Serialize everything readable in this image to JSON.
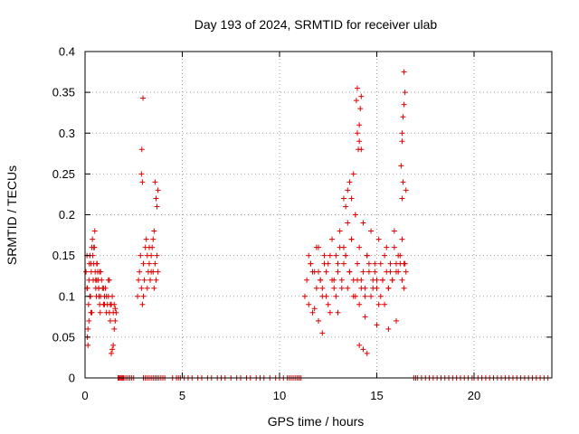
{
  "chart_data": {
    "type": "scatter",
    "title": "Day 193 of 2024, SRMTID for receiver ulab",
    "xlabel": "GPS time / hours",
    "ylabel": "SRMTID / TECUs",
    "xlim": [
      0,
      24
    ],
    "ylim": [
      0,
      0.4
    ],
    "xticks": [
      0,
      5,
      10,
      15,
      20
    ],
    "xtick_labels": [
      "0",
      "5",
      "10",
      "15",
      "20"
    ],
    "yticks": [
      0,
      0.05,
      0.1,
      0.15,
      0.2,
      0.25,
      0.3,
      0.35,
      0.4
    ],
    "ytick_labels": [
      "0",
      "0.05",
      "0.1",
      "0.15",
      "0.2",
      "0.25",
      "0.3",
      "0.35",
      "0.4"
    ],
    "grid": true,
    "marker": "+",
    "color": "#e00000",
    "series": [
      {
        "name": "SRMTID",
        "x": [
          0.05,
          0.1,
          0.12,
          0.15,
          0.18,
          0.2,
          0.22,
          0.25,
          0.28,
          0.3,
          0.32,
          0.35,
          0.38,
          0.4,
          0.42,
          0.45,
          0.48,
          0.5,
          0.52,
          0.55,
          0.58,
          0.6,
          0.62,
          0.65,
          0.68,
          0.7,
          0.72,
          0.75,
          0.78,
          0.8,
          0.85,
          0.9,
          0.95,
          1.0,
          1.05,
          1.1,
          1.15,
          1.2,
          1.25,
          1.3,
          1.35,
          1.4,
          1.45,
          1.5,
          1.55,
          1.6,
          0.15,
          0.2,
          0.25,
          0.3,
          0.45,
          0.55,
          0.7,
          0.8,
          1.0,
          1.2,
          1.35,
          1.4,
          1.45,
          1.5,
          0.1,
          0.12,
          0.35,
          0.6,
          0.75,
          0.95,
          1.1,
          1.25,
          1.3,
          1.55,
          2.7,
          2.75,
          2.8,
          2.85,
          2.9,
          2.95,
          3.0,
          3.05,
          3.1,
          3.15,
          3.2,
          3.25,
          3.3,
          3.35,
          3.4,
          3.45,
          3.5,
          3.55,
          3.6,
          3.65,
          3.7,
          3.75,
          2.9,
          2.92,
          2.95,
          2.98,
          3.6,
          3.65,
          3.7,
          3.75,
          3.5,
          3.55,
          3.0,
          3.2,
          3.4,
          3.3,
          11.3,
          11.4,
          11.5,
          11.6,
          11.7,
          11.8,
          11.9,
          12.0,
          12.1,
          12.2,
          12.3,
          12.4,
          12.5,
          12.6,
          12.7,
          12.8,
          12.9,
          13.0,
          13.1,
          13.2,
          13.3,
          13.4,
          13.5,
          13.6,
          13.7,
          13.8,
          13.9,
          14.0,
          14.1,
          14.2,
          14.3,
          14.4,
          14.5,
          14.6,
          14.7,
          14.8,
          14.9,
          15.0,
          15.1,
          15.2,
          15.3,
          15.4,
          15.5,
          15.6,
          15.7,
          15.8,
          15.9,
          16.0,
          16.1,
          16.2,
          16.3,
          16.4,
          16.5,
          11.5,
          11.8,
          12.0,
          12.2,
          12.4,
          12.6,
          12.8,
          13.0,
          13.2,
          13.4,
          13.6,
          13.8,
          14.0,
          14.2,
          14.4,
          14.6,
          14.8,
          15.0,
          15.2,
          15.4,
          15.6,
          15.8,
          16.0,
          16.2,
          16.4,
          11.6,
          11.9,
          12.3,
          12.7,
          13.1,
          13.5,
          13.9,
          14.3,
          14.7,
          15.1,
          15.5,
          15.9,
          16.3,
          11.7,
          12.1,
          12.5,
          12.9,
          13.3,
          13.7,
          14.1,
          14.5,
          14.9,
          15.3,
          15.7,
          16.1,
          16.45,
          13.3,
          13.4,
          13.5,
          13.6,
          13.7,
          13.8,
          13.9,
          14.0,
          14.05,
          14.1,
          14.15,
          14.2,
          13.95,
          14.0,
          14.1,
          14.2,
          16.25,
          16.3,
          16.35,
          16.4,
          16.45,
          16.3,
          16.35,
          16.4,
          16.5,
          16.3,
          12.2,
          14.1,
          14.3,
          14.5,
          15.0,
          12.0,
          13.0,
          14.4,
          15.6,
          16.0,
          1.7,
          1.75,
          1.8,
          1.85,
          1.9,
          1.95,
          2.0,
          2.1,
          2.2,
          2.3,
          2.4,
          2.5,
          3.0,
          3.1,
          3.2,
          3.3,
          3.4,
          3.5,
          3.6,
          3.7,
          3.8,
          3.9,
          4.0,
          4.1,
          4.5,
          4.7,
          4.8,
          4.9,
          5.1,
          5.3,
          5.5,
          5.8,
          6.0,
          6.3,
          6.5,
          6.8,
          7.0,
          7.2,
          7.5,
          7.8,
          8.0,
          8.3,
          8.5,
          8.8,
          9.0,
          9.2,
          9.5,
          9.8,
          10.0,
          10.2,
          10.4,
          10.5,
          10.6,
          10.7,
          10.8,
          10.9,
          11.0,
          11.1,
          16.9,
          17.0,
          17.1,
          17.3,
          17.5,
          17.7,
          17.9,
          18.1,
          18.3,
          18.5,
          18.7,
          18.9,
          19.1,
          19.3,
          19.5,
          19.7,
          19.9,
          20.0,
          20.2,
          20.4,
          20.6,
          20.8,
          21.0,
          21.2,
          21.4,
          21.6,
          21.8,
          22.0,
          22.2,
          22.4,
          22.6,
          22.8,
          23.0,
          23.2,
          23.4,
          23.6,
          23.8
        ],
        "y": [
          0.13,
          0.11,
          0.05,
          0.04,
          0.09,
          0.12,
          0.14,
          0.15,
          0.1,
          0.08,
          0.13,
          0.16,
          0.17,
          0.15,
          0.12,
          0.14,
          0.16,
          0.18,
          0.13,
          0.11,
          0.1,
          0.12,
          0.14,
          0.13,
          0.12,
          0.11,
          0.1,
          0.09,
          0.08,
          0.1,
          0.12,
          0.11,
          0.09,
          0.1,
          0.11,
          0.08,
          0.09,
          0.1,
          0.08,
          0.07,
          0.09,
          0.1,
          0.08,
          0.09,
          0.07,
          0.08,
          0.06,
          0.07,
          0.1,
          0.14,
          0.16,
          0.12,
          0.11,
          0.13,
          0.09,
          0.12,
          0.03,
          0.035,
          0.04,
          0.06,
          0.15,
          0.11,
          0.08,
          0.14,
          0.13,
          0.11,
          0.1,
          0.12,
          0.09,
          0.085,
          0.1,
          0.12,
          0.13,
          0.15,
          0.11,
          0.09,
          0.14,
          0.12,
          0.16,
          0.17,
          0.15,
          0.13,
          0.14,
          0.12,
          0.15,
          0.16,
          0.13,
          0.11,
          0.14,
          0.12,
          0.15,
          0.13,
          0.25,
          0.28,
          0.24,
          0.343,
          0.24,
          0.22,
          0.21,
          0.23,
          0.17,
          0.18,
          0.1,
          0.11,
          0.13,
          0.16,
          0.1,
          0.12,
          0.15,
          0.14,
          0.08,
          0.13,
          0.11,
          0.16,
          0.12,
          0.1,
          0.14,
          0.13,
          0.09,
          0.15,
          0.12,
          0.11,
          0.1,
          0.13,
          0.16,
          0.12,
          0.14,
          0.15,
          0.11,
          0.13,
          0.17,
          0.12,
          0.1,
          0.14,
          0.09,
          0.12,
          0.13,
          0.11,
          0.15,
          0.14,
          0.1,
          0.12,
          0.13,
          0.11,
          0.09,
          0.14,
          0.12,
          0.15,
          0.13,
          0.11,
          0.14,
          0.12,
          0.16,
          0.14,
          0.13,
          0.15,
          0.12,
          0.14,
          0.13,
          0.09,
          0.085,
          0.13,
          0.11,
          0.1,
          0.08,
          0.12,
          0.14,
          0.11,
          0.15,
          0.13,
          0.1,
          0.12,
          0.11,
          0.1,
          0.13,
          0.11,
          0.12,
          0.1,
          0.09,
          0.11,
          0.12,
          0.13,
          0.14,
          0.11,
          0.14,
          0.16,
          0.15,
          0.17,
          0.18,
          0.19,
          0.2,
          0.19,
          0.18,
          0.17,
          0.16,
          0.18,
          0.17,
          0.13,
          0.12,
          0.14,
          0.15,
          0.16,
          0.17,
          0.16,
          0.15,
          0.14,
          0.12,
          0.13,
          0.15,
          0.14,
          0.22,
          0.21,
          0.23,
          0.24,
          0.22,
          0.25,
          0.2,
          0.3,
          0.28,
          0.31,
          0.33,
          0.345,
          0.34,
          0.355,
          0.29,
          0.28,
          0.26,
          0.3,
          0.32,
          0.335,
          0.35,
          0.29,
          0.24,
          0.375,
          0.23,
          0.22,
          0.055,
          0.04,
          0.035,
          0.03,
          0.065,
          0.07,
          0.08,
          0.075,
          0.06,
          0.07,
          0,
          0,
          0,
          0,
          0,
          0,
          0,
          0,
          0,
          0,
          0,
          0,
          0,
          0,
          0,
          0,
          0,
          0,
          0,
          0,
          0,
          0,
          0,
          0,
          0,
          0,
          0,
          0,
          0,
          0,
          0,
          0,
          0,
          0,
          0,
          0,
          0,
          0,
          0,
          0,
          0,
          0,
          0,
          0,
          0,
          0,
          0,
          0,
          0,
          0,
          0,
          0,
          0,
          0,
          0,
          0,
          0,
          0,
          0,
          0,
          0,
          0,
          0,
          0,
          0,
          0,
          0,
          0,
          0,
          0,
          0,
          0,
          0,
          0,
          0,
          0,
          0,
          0,
          0,
          0,
          0,
          0,
          0,
          0,
          0,
          0,
          0,
          0,
          0,
          0,
          0,
          0,
          0,
          0,
          0
        ]
      }
    ]
  }
}
